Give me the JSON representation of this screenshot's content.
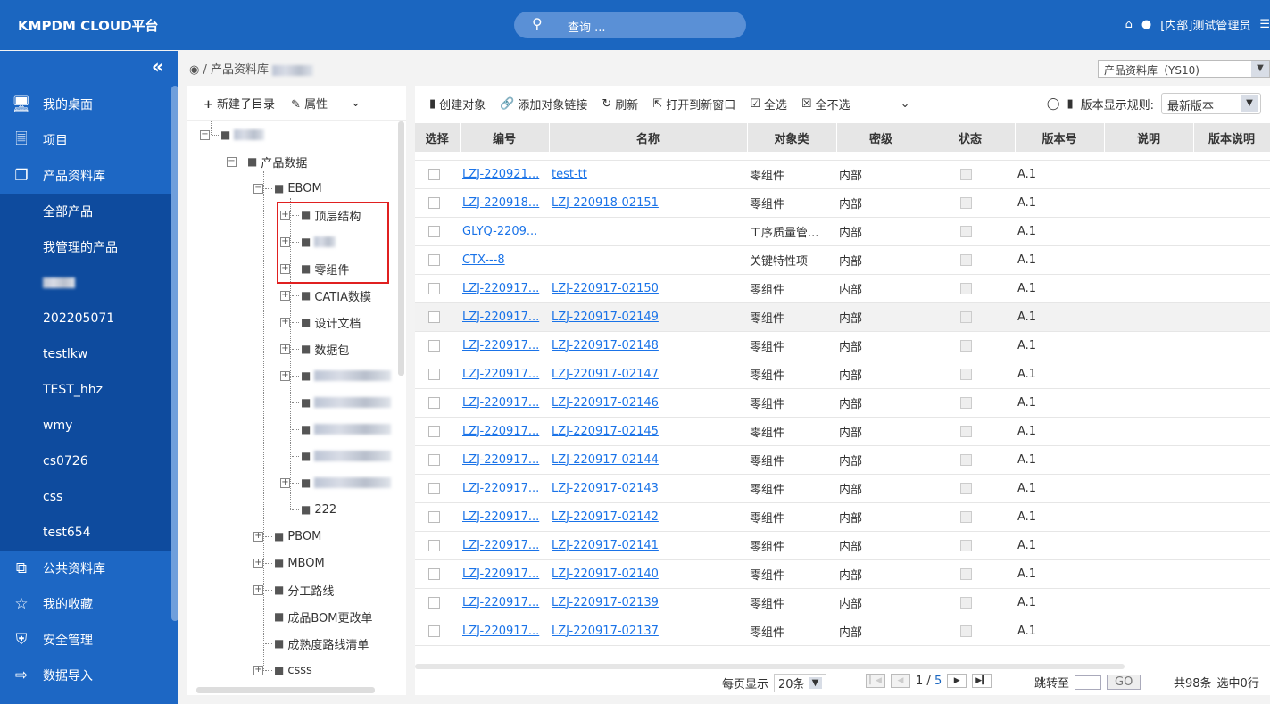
{
  "header": {
    "title": "KMPDM CLOUD平台",
    "search_placeholder": "查询 ...",
    "user": "[内部]测试管理员"
  },
  "sidebar": {
    "items": [
      {
        "label": "我的桌面",
        "icon": "monitor-icon"
      },
      {
        "label": "项目",
        "icon": "file-icon"
      },
      {
        "label": "产品资料库",
        "icon": "cubes-icon"
      },
      {
        "label": "公共资料库",
        "icon": "copy-icon"
      },
      {
        "label": "我的收藏",
        "icon": "star-icon"
      },
      {
        "label": "安全管理",
        "icon": "shield-icon"
      },
      {
        "label": "数据导入",
        "icon": "import-icon"
      }
    ],
    "sub_items": [
      "全部产品",
      "我管理的产品",
      "",
      "202205071",
      "testlkw",
      "TEST_hhz",
      "wmy",
      "cs0726",
      "css",
      "test654"
    ]
  },
  "breadcrumb": {
    "path": "/ 产品资料库"
  },
  "library_select": "产品资料库（YS10)",
  "tree": {
    "toolbar": {
      "new_sub": "新建子目录",
      "props": "属性"
    },
    "nodes": [
      {
        "label": "",
        "level": 0,
        "exp": "-"
      },
      {
        "label": "产品数据",
        "level": 1,
        "exp": "-"
      },
      {
        "label": "EBOM",
        "level": 2,
        "exp": "-"
      },
      {
        "label": "顶层结构",
        "level": 3,
        "exp": "+"
      },
      {
        "label": "",
        "level": 3,
        "exp": "+"
      },
      {
        "label": "零组件",
        "level": 3,
        "exp": "+"
      },
      {
        "label": "CATIA数模",
        "level": 3,
        "exp": "+"
      },
      {
        "label": "设计文档",
        "level": 3,
        "exp": "+"
      },
      {
        "label": "数据包",
        "level": 3,
        "exp": "+"
      },
      {
        "label": "",
        "level": 3,
        "exp": "+"
      },
      {
        "label": "",
        "level": 3,
        "exp": ""
      },
      {
        "label": "",
        "level": 3,
        "exp": ""
      },
      {
        "label": "",
        "level": 3,
        "exp": ""
      },
      {
        "label": "",
        "level": 3,
        "exp": "+"
      },
      {
        "label": "222",
        "level": 3,
        "exp": ""
      },
      {
        "label": "PBOM",
        "level": 2,
        "exp": "+"
      },
      {
        "label": "MBOM",
        "level": 2,
        "exp": "+"
      },
      {
        "label": "分工路线",
        "level": 2,
        "exp": "+"
      },
      {
        "label": "成品BOM更改单",
        "level": 2,
        "exp": ""
      },
      {
        "label": "成熟度路线清单",
        "level": 2,
        "exp": ""
      },
      {
        "label": "csss",
        "level": 2,
        "exp": "+"
      }
    ]
  },
  "toolbar": {
    "create": "创建对象",
    "add_link": "添加对象链接",
    "refresh": "刷新",
    "open_new": "打开到新窗口",
    "select_all": "全选",
    "select_none": "全不选",
    "version_rule_label": "版本显示规则:",
    "version_rule": "最新版本"
  },
  "table": {
    "columns": [
      "选择",
      "编号",
      "名称",
      "对象类",
      "密级",
      "状态",
      "版本号",
      "说明",
      "版本说明"
    ],
    "rows": [
      [
        "LZJ-220921...",
        "test-tt",
        "零组件",
        "内部",
        "A.1"
      ],
      [
        "LZJ-220918...",
        "LZJ-220918-02151",
        "零组件",
        "内部",
        "A.1"
      ],
      [
        "GLYQ-2209...",
        "",
        "工序质量管...",
        "内部",
        "A.1"
      ],
      [
        "CTX---8",
        "",
        "关键特性项",
        "内部",
        "A.1"
      ],
      [
        "LZJ-220917...",
        "LZJ-220917-02150",
        "零组件",
        "内部",
        "A.1"
      ],
      [
        "LZJ-220917...",
        "LZJ-220917-02149",
        "零组件",
        "内部",
        "A.1"
      ],
      [
        "LZJ-220917...",
        "LZJ-220917-02148",
        "零组件",
        "内部",
        "A.1"
      ],
      [
        "LZJ-220917...",
        "LZJ-220917-02147",
        "零组件",
        "内部",
        "A.1"
      ],
      [
        "LZJ-220917...",
        "LZJ-220917-02146",
        "零组件",
        "内部",
        "A.1"
      ],
      [
        "LZJ-220917...",
        "LZJ-220917-02145",
        "零组件",
        "内部",
        "A.1"
      ],
      [
        "LZJ-220917...",
        "LZJ-220917-02144",
        "零组件",
        "内部",
        "A.1"
      ],
      [
        "LZJ-220917...",
        "LZJ-220917-02143",
        "零组件",
        "内部",
        "A.1"
      ],
      [
        "LZJ-220917...",
        "LZJ-220917-02142",
        "零组件",
        "内部",
        "A.1"
      ],
      [
        "LZJ-220917...",
        "LZJ-220917-02141",
        "零组件",
        "内部",
        "A.1"
      ],
      [
        "LZJ-220917...",
        "LZJ-220917-02140",
        "零组件",
        "内部",
        "A.1"
      ],
      [
        "LZJ-220917...",
        "LZJ-220917-02139",
        "零组件",
        "内部",
        "A.1"
      ],
      [
        "LZJ-220917...",
        "LZJ-220917-02137",
        "零组件",
        "内部",
        "A.1"
      ]
    ]
  },
  "footer": {
    "per_page_label": "每页显示",
    "per_page": "20条",
    "page": "1",
    "page_sep": " / ",
    "pages": "5",
    "jump_label": "跳转至",
    "go": "GO",
    "total": "共98条",
    "selected": "选中0行"
  }
}
